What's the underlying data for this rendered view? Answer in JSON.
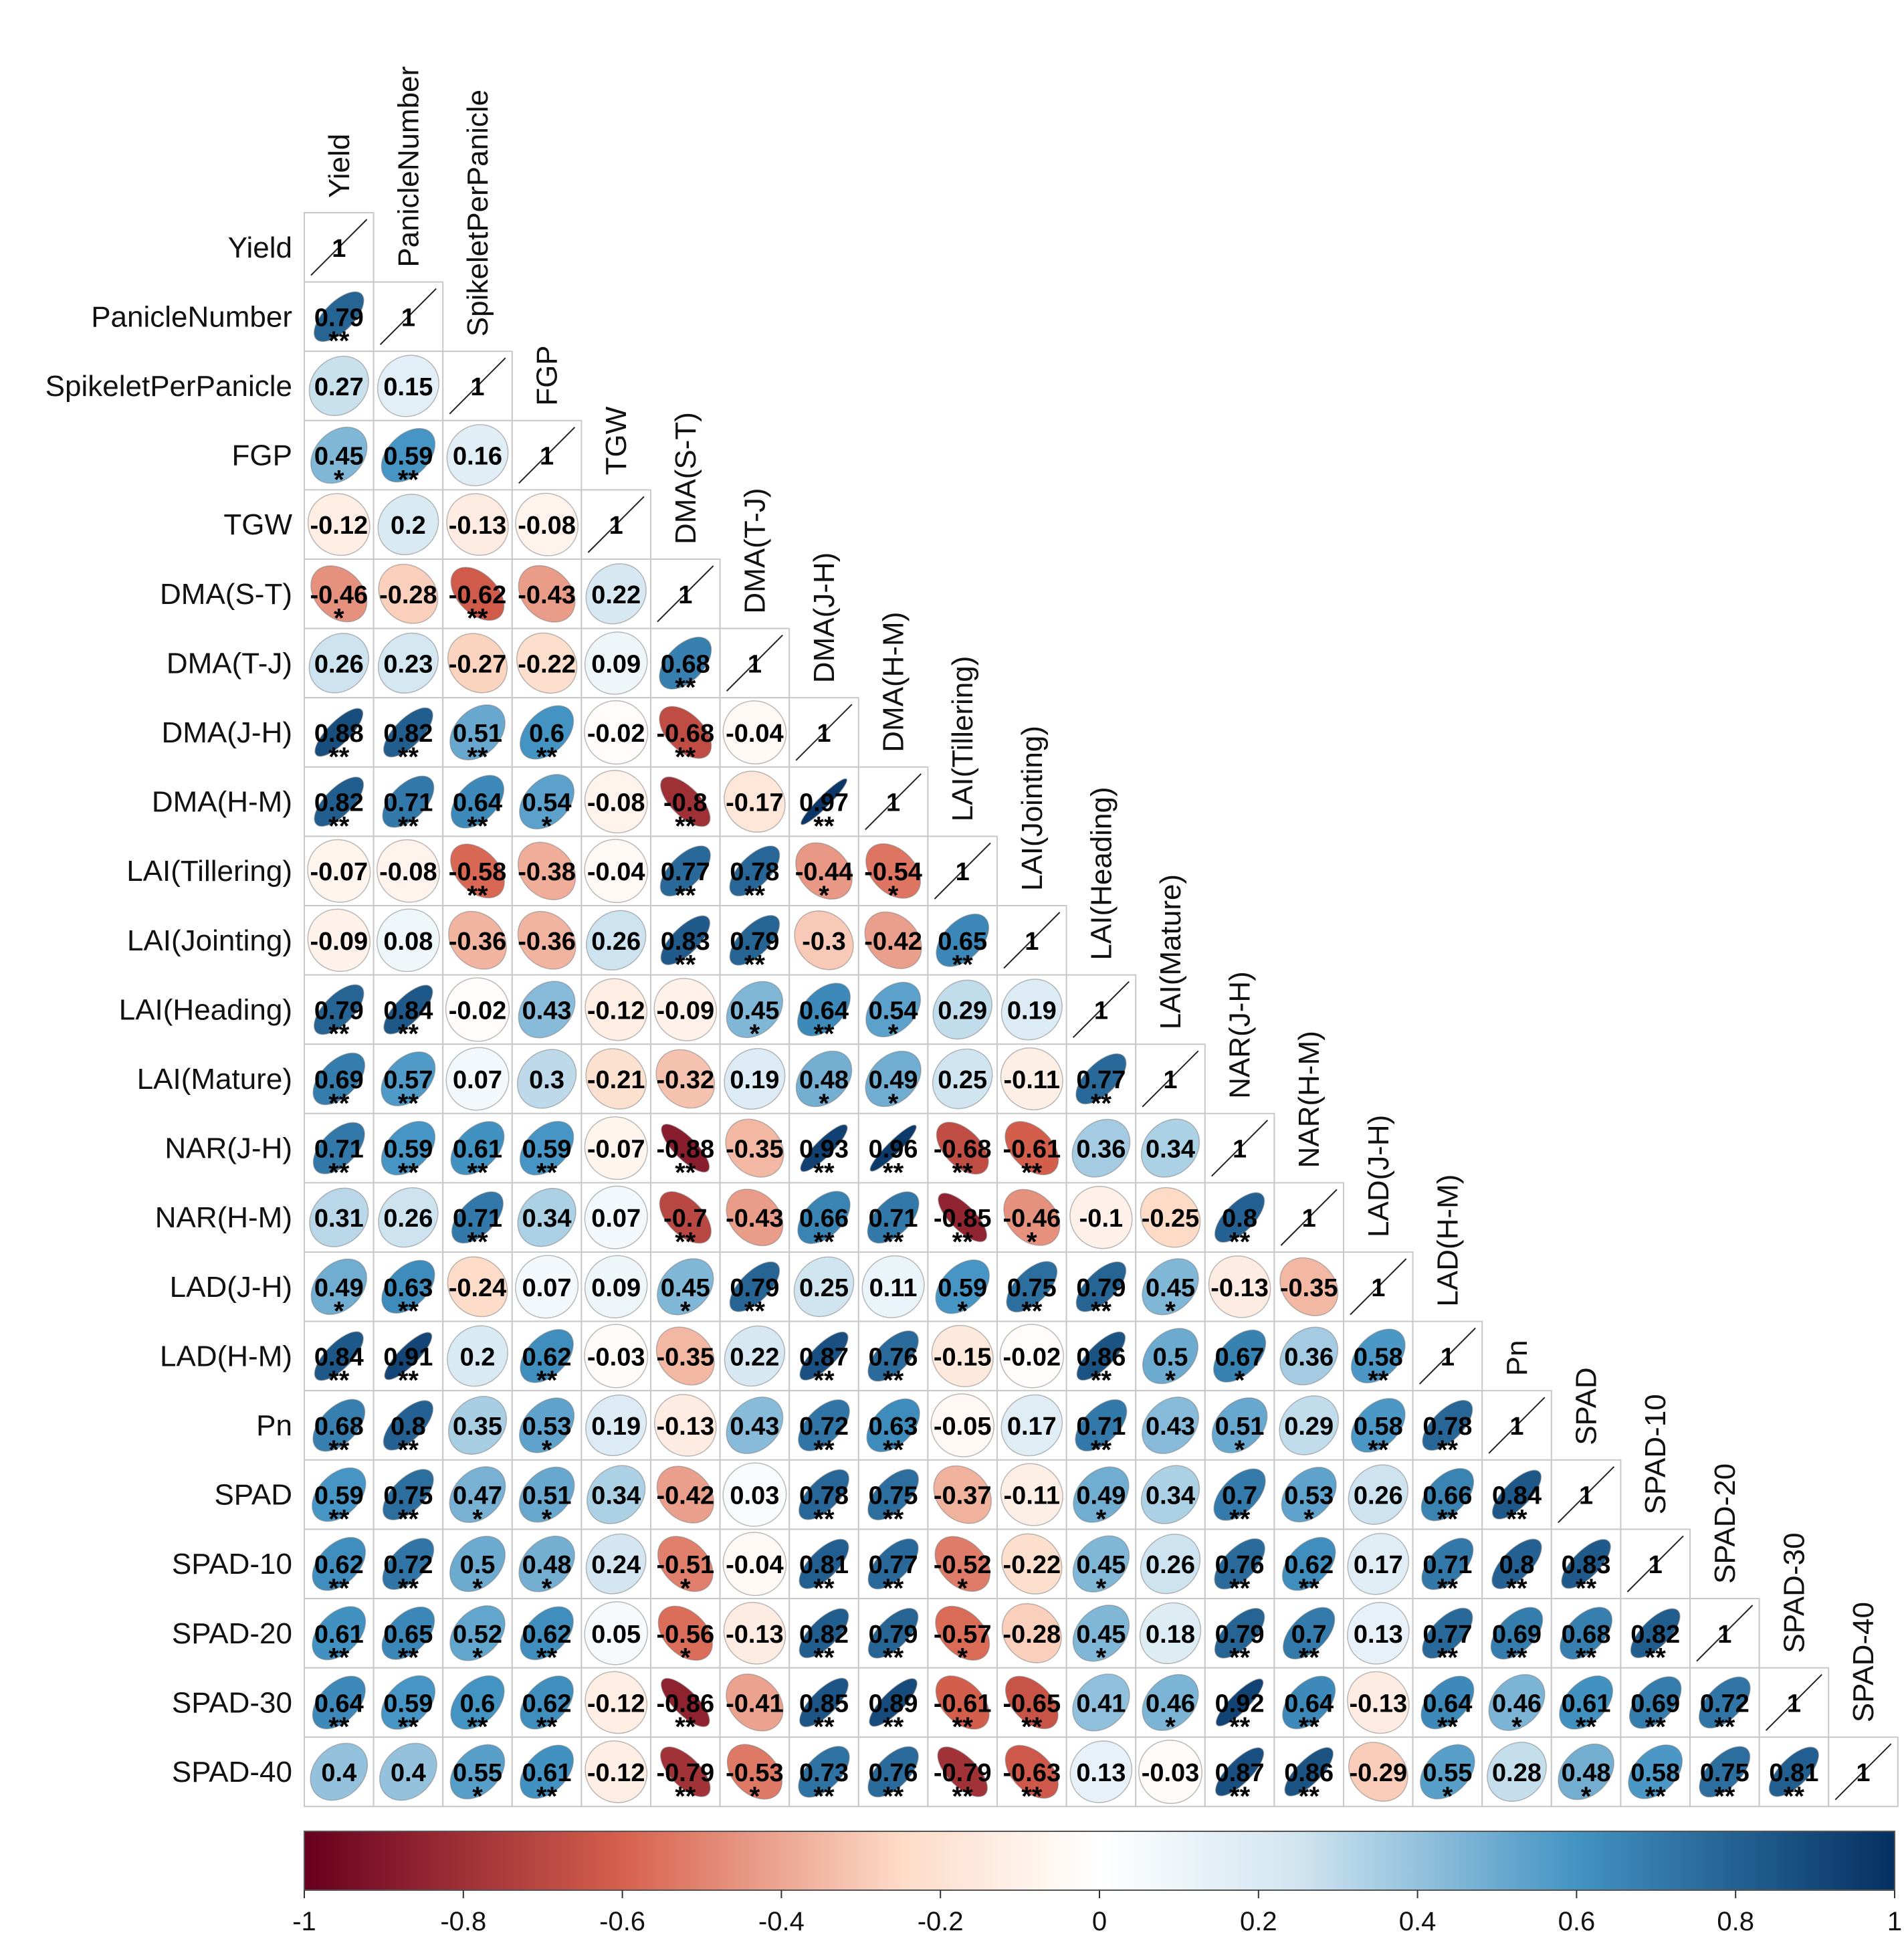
{
  "chart_data": {
    "type": "heatmap",
    "title": "",
    "variables": [
      "Yield",
      "PanicleNumber",
      "SpikeletPerPanicle",
      "FGP",
      "TGW",
      "DMA(S-T)",
      "DMA(T-J)",
      "DMA(J-H)",
      "DMA(H-M)",
      "LAI(Tillering)",
      "LAI(Jointing)",
      "LAI(Heading)",
      "LAI(Mature)",
      "NAR(J-H)",
      "NAR(H-M)",
      "LAD(J-H)",
      "LAD(H-M)",
      "Pn",
      "SPAD",
      "SPAD-10",
      "SPAD-20",
      "SPAD-30",
      "SPAD-40"
    ],
    "values": [
      [
        "1"
      ],
      [
        "0.79",
        "1"
      ],
      [
        "0.27",
        "0.15",
        "1"
      ],
      [
        "0.45",
        "0.59",
        "0.16",
        "1"
      ],
      [
        "-0.12",
        "0.2",
        "-0.13",
        "-0.08",
        "1"
      ],
      [
        "-0.46",
        "-0.28",
        "-0.62",
        "-0.43",
        "0.22",
        "1"
      ],
      [
        "0.26",
        "0.23",
        "-0.27",
        "-0.22",
        "0.09",
        "0.68",
        "1"
      ],
      [
        "0.88",
        "0.82",
        "0.51",
        "0.6",
        "-0.02",
        "-0.68",
        "-0.04",
        "1"
      ],
      [
        "0.82",
        "0.71",
        "0.64",
        "0.54",
        "-0.08",
        "-0.8",
        "-0.17",
        "0.97",
        "1"
      ],
      [
        "-0.07",
        "-0.08",
        "-0.58",
        "-0.38",
        "-0.04",
        "0.77",
        "0.78",
        "-0.44",
        "-0.54",
        "1"
      ],
      [
        "-0.09",
        "0.08",
        "-0.36",
        "-0.36",
        "0.26",
        "0.83",
        "0.79",
        "-0.3",
        "-0.42",
        "0.65",
        "1"
      ],
      [
        "0.79",
        "0.84",
        "-0.02",
        "0.43",
        "-0.12",
        "-0.09",
        "0.45",
        "0.64",
        "0.54",
        "0.29",
        "0.19",
        "1"
      ],
      [
        "0.69",
        "0.57",
        "0.07",
        "0.3",
        "-0.21",
        "-0.32",
        "0.19",
        "0.48",
        "0.49",
        "0.25",
        "-0.11",
        "0.77",
        "1"
      ],
      [
        "0.71",
        "0.59",
        "0.61",
        "0.59",
        "-0.07",
        "-0.88",
        "-0.35",
        "0.93",
        "0.96",
        "-0.68",
        "-0.61",
        "0.36",
        "0.34",
        "1"
      ],
      [
        "0.31",
        "0.26",
        "0.71",
        "0.34",
        "0.07",
        "-0.7",
        "-0.43",
        "0.66",
        "0.71",
        "-0.85",
        "-0.46",
        "-0.1",
        "-0.25",
        "0.8",
        "1"
      ],
      [
        "0.49",
        "0.63",
        "-0.24",
        "0.07",
        "0.09",
        "0.45",
        "0.79",
        "0.25",
        "0.11",
        "0.59",
        "0.75",
        "0.79",
        "0.45",
        "-0.13",
        "-0.35",
        "1"
      ],
      [
        "0.84",
        "0.91",
        "0.2",
        "0.62",
        "-0.03",
        "-0.35",
        "0.22",
        "0.87",
        "0.76",
        "-0.15",
        "-0.02",
        "0.86",
        "0.5",
        "0.67",
        "0.36",
        "0.58",
        "1"
      ],
      [
        "0.68",
        "0.8",
        "0.35",
        "0.53",
        "0.19",
        "-0.13",
        "0.43",
        "0.72",
        "0.63",
        "-0.05",
        "0.17",
        "0.71",
        "0.43",
        "0.51",
        "0.29",
        "0.58",
        "0.78",
        "1"
      ],
      [
        "0.59",
        "0.75",
        "0.47",
        "0.51",
        "0.34",
        "-0.42",
        "0.03",
        "0.78",
        "0.75",
        "-0.37",
        "-0.11",
        "0.49",
        "0.34",
        "0.7",
        "0.53",
        "0.26",
        "0.66",
        "0.84",
        "1"
      ],
      [
        "0.62",
        "0.72",
        "0.5",
        "0.48",
        "0.24",
        "-0.51",
        "-0.04",
        "0.81",
        "0.77",
        "-0.52",
        "-0.22",
        "0.45",
        "0.26",
        "0.76",
        "0.62",
        "0.17",
        "0.71",
        "0.8",
        "0.83",
        "1"
      ],
      [
        "0.61",
        "0.65",
        "0.52",
        "0.62",
        "0.05",
        "-0.56",
        "-0.13",
        "0.82",
        "0.79",
        "-0.57",
        "-0.28",
        "0.45",
        "0.18",
        "0.79",
        "0.7",
        "0.13",
        "0.77",
        "0.69",
        "0.68",
        "0.82",
        "1"
      ],
      [
        "0.64",
        "0.59",
        "0.6",
        "0.62",
        "-0.12",
        "-0.86",
        "-0.41",
        "0.85",
        "0.89",
        "-0.61",
        "-0.65",
        "0.41",
        "0.46",
        "0.92",
        "0.64",
        "-0.13",
        "0.64",
        "0.46",
        "0.61",
        "0.69",
        "0.72",
        "1"
      ],
      [
        "0.4",
        "0.4",
        "0.55",
        "0.61",
        "-0.12",
        "-0.79",
        "-0.53",
        "0.73",
        "0.76",
        "-0.79",
        "-0.63",
        "0.13",
        "-0.03",
        "0.87",
        "0.86",
        "-0.29",
        "0.55",
        "0.28",
        "0.48",
        "0.58",
        "0.75",
        "0.81",
        "1"
      ]
    ],
    "significance": [
      [
        ""
      ],
      [
        "**",
        ""
      ],
      [
        "",
        "",
        ""
      ],
      [
        "*",
        "**",
        "",
        ""
      ],
      [
        "",
        "",
        "",
        "",
        ""
      ],
      [
        "*",
        "",
        "**",
        "",
        "",
        ""
      ],
      [
        "",
        "",
        "",
        "",
        "",
        "**",
        ""
      ],
      [
        "**",
        "**",
        "**",
        "**",
        "",
        "**",
        "",
        ""
      ],
      [
        "**",
        "**",
        "**",
        "*",
        "",
        "**",
        "",
        "**",
        ""
      ],
      [
        "",
        "",
        "**",
        "",
        "",
        "**",
        "**",
        "*",
        "*",
        ""
      ],
      [
        "",
        "",
        "",
        "",
        "",
        "**",
        "**",
        "",
        "",
        "**",
        ""
      ],
      [
        "**",
        "**",
        "",
        "",
        "",
        "",
        "*",
        "**",
        "*",
        "",
        "",
        ""
      ],
      [
        "**",
        "**",
        "",
        "",
        "",
        "",
        "",
        "*",
        "*",
        "",
        "",
        "**",
        ""
      ],
      [
        "**",
        "**",
        "**",
        "**",
        "",
        "**",
        "",
        "**",
        "**",
        "**",
        "**",
        "",
        "",
        ""
      ],
      [
        "",
        "",
        "**",
        "",
        "",
        "**",
        "",
        "**",
        "**",
        "**",
        "*",
        "",
        "",
        "**",
        ""
      ],
      [
        "*",
        "**",
        "",
        "",
        "",
        "*",
        "**",
        "",
        "",
        "*",
        "**",
        "**",
        "*",
        "",
        "",
        ""
      ],
      [
        "**",
        "**",
        "",
        "**",
        "",
        "",
        "",
        "**",
        "**",
        "",
        "",
        "**",
        "*",
        "*",
        "",
        "**",
        ""
      ],
      [
        "**",
        "**",
        "",
        "*",
        "",
        "",
        "",
        "**",
        "**",
        "",
        "",
        "**",
        "",
        "*",
        "",
        "**",
        "**",
        ""
      ],
      [
        "**",
        "**",
        "*",
        "*",
        "",
        "",
        "",
        "**",
        "**",
        "",
        "",
        "*",
        "",
        "**",
        "*",
        "",
        "**",
        "**",
        ""
      ],
      [
        "**",
        "**",
        "*",
        "*",
        "",
        "*",
        "",
        "**",
        "**",
        "*",
        "",
        "*",
        "",
        "**",
        "**",
        "",
        "**",
        "**",
        "**",
        ""
      ],
      [
        "**",
        "**",
        "*",
        "**",
        "",
        "*",
        "",
        "**",
        "**",
        "*",
        "",
        "*",
        "",
        "**",
        "**",
        "",
        "**",
        "**",
        "**",
        "**",
        ""
      ],
      [
        "**",
        "**",
        "**",
        "**",
        "",
        "**",
        "",
        "**",
        "**",
        "**",
        "**",
        "",
        "*",
        "**",
        "**",
        "",
        "**",
        "*",
        "**",
        "**",
        "**",
        ""
      ],
      [
        "",
        "",
        "*",
        "**",
        "",
        "**",
        "*",
        "**",
        "**",
        "**",
        "**",
        "",
        "",
        "**",
        "**",
        "",
        "*",
        "",
        "*",
        "**",
        "**",
        "**",
        ""
      ]
    ],
    "colorbar": {
      "min": -1,
      "max": 1,
      "ticks": [
        "-1",
        "-0.8",
        "-0.6",
        "-0.4",
        "-0.2",
        "0",
        "0.2",
        "0.4",
        "0.6",
        "0.8",
        "1"
      ]
    },
    "colors": {
      "neg_strong": "#67001f",
      "neg_mid": "#d6604d",
      "neg_light": "#fddbc7",
      "neutral": "#ffffff",
      "pos_light": "#d1e5f0",
      "pos_mid": "#4393c3",
      "pos_strong": "#053061"
    }
  }
}
